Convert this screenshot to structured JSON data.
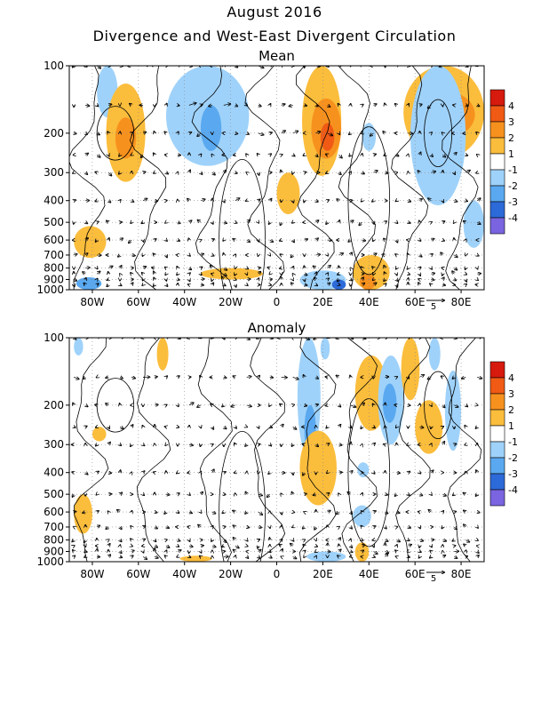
{
  "header": {
    "title": "August 2016",
    "subtitle": "Divergence and West-East Divergent Circulation"
  },
  "chart_data": [
    {
      "type": "heatmap",
      "title": "Mean",
      "x_ticks": [
        "80W",
        "60W",
        "40W",
        "20W",
        "0",
        "20E",
        "40E",
        "60E",
        "80E"
      ],
      "x_tick_values": [
        -80,
        -60,
        -40,
        -20,
        0,
        20,
        40,
        60,
        80
      ],
      "xlim": [
        -90,
        90
      ],
      "y_ticks": [
        "100",
        "200",
        "300",
        "400",
        "500",
        "600",
        "700",
        "800",
        "900",
        "1000"
      ],
      "y_tick_values": [
        100,
        200,
        300,
        400,
        500,
        600,
        700,
        800,
        900,
        1000
      ],
      "ylim": [
        1000,
        100
      ],
      "y_scale": "log",
      "grid": true,
      "vector_ref_label": "5",
      "colorbar": {
        "labels": [
          "4",
          "3",
          "2",
          "1",
          "-1",
          "-2",
          "-3",
          "-4"
        ],
        "colors": [
          "#d61a0d",
          "#f05a14",
          "#f7911e",
          "#fbbd3c",
          "#ffffff",
          "#9fd2fa",
          "#5aa9f0",
          "#2d6ad9",
          "#7a64e0"
        ]
      },
      "regions": [
        {
          "x": [
            -78,
            -69
          ],
          "p": [
            100,
            170
          ],
          "level": -1
        },
        {
          "x": [
            -74,
            -57
          ],
          "p": [
            120,
            330
          ],
          "level": 1
        },
        {
          "x": [
            -70,
            -61
          ],
          "p": [
            170,
            260
          ],
          "level": 2
        },
        {
          "x": [
            -48,
            -12
          ],
          "p": [
            100,
            280
          ],
          "level": -1
        },
        {
          "x": [
            -33,
            -24
          ],
          "p": [
            150,
            240
          ],
          "level": -2
        },
        {
          "x": [
            11,
            28
          ],
          "p": [
            100,
            310
          ],
          "level": 1
        },
        {
          "x": [
            15,
            28
          ],
          "p": [
            140,
            260
          ],
          "level": 2
        },
        {
          "x": [
            19,
            25
          ],
          "p": [
            180,
            240
          ],
          "level": 3
        },
        {
          "x": [
            37,
            43
          ],
          "p": [
            180,
            240
          ],
          "level": -1
        },
        {
          "x": [
            55,
            90
          ],
          "p": [
            100,
            260
          ],
          "level": 1
        },
        {
          "x": [
            60,
            86
          ],
          "p": [
            130,
            210
          ],
          "level": 2
        },
        {
          "x": [
            58,
            82
          ],
          "p": [
            100,
            420
          ],
          "level": -1
        },
        {
          "x": [
            -88,
            -74
          ],
          "p": [
            520,
            720
          ],
          "level": 1
        },
        {
          "x": [
            -33,
            -6
          ],
          "p": [
            800,
            900
          ],
          "level": 1
        },
        {
          "x": [
            10,
            30
          ],
          "p": [
            820,
            1000
          ],
          "level": -1
        },
        {
          "x": [
            24,
            30
          ],
          "p": [
            900,
            1000
          ],
          "level": -3
        },
        {
          "x": [
            33,
            49
          ],
          "p": [
            700,
            1000
          ],
          "level": 1
        },
        {
          "x": [
            36,
            43
          ],
          "p": [
            850,
            1000
          ],
          "level": 2
        },
        {
          "x": [
            -87,
            -76
          ],
          "p": [
            880,
            1000
          ],
          "level": -2
        },
        {
          "x": [
            0,
            10
          ],
          "p": [
            300,
            460
          ],
          "level": 1
        },
        {
          "x": [
            81,
            90
          ],
          "p": [
            400,
            650
          ],
          "level": -1
        }
      ]
    },
    {
      "type": "heatmap",
      "title": "Anomaly",
      "x_ticks": [
        "80W",
        "60W",
        "40W",
        "20W",
        "0",
        "20E",
        "40E",
        "60E",
        "80E"
      ],
      "x_tick_values": [
        -80,
        -60,
        -40,
        -20,
        0,
        20,
        40,
        60,
        80
      ],
      "xlim": [
        -90,
        90
      ],
      "y_ticks": [
        "100",
        "200",
        "300",
        "400",
        "500",
        "600",
        "700",
        "800",
        "900",
        "1000"
      ],
      "y_tick_values": [
        100,
        200,
        300,
        400,
        500,
        600,
        700,
        800,
        900,
        1000
      ],
      "ylim": [
        1000,
        100
      ],
      "y_scale": "log",
      "grid": true,
      "vector_ref_label": "5",
      "colorbar": {
        "labels": [
          "4",
          "3",
          "2",
          "1",
          "-1",
          "-2",
          "-3",
          "-4"
        ],
        "colors": [
          "#d61a0d",
          "#f05a14",
          "#f7911e",
          "#fbbd3c",
          "#ffffff",
          "#9fd2fa",
          "#5aa9f0",
          "#2d6ad9",
          "#7a64e0"
        ]
      },
      "regions": [
        {
          "x": [
            -52,
            -47
          ],
          "p": [
            100,
            140
          ],
          "level": 1
        },
        {
          "x": [
            -80,
            -74
          ],
          "p": [
            250,
            290
          ],
          "level": 1
        },
        {
          "x": [
            -88,
            -80
          ],
          "p": [
            500,
            750
          ],
          "level": 1
        },
        {
          "x": [
            9,
            19
          ],
          "p": [
            100,
            340
          ],
          "level": -1
        },
        {
          "x": [
            12,
            17
          ],
          "p": [
            200,
            330
          ],
          "level": -2
        },
        {
          "x": [
            19,
            23
          ],
          "p": [
            100,
            125
          ],
          "level": -1
        },
        {
          "x": [
            10,
            26
          ],
          "p": [
            260,
            560
          ],
          "level": 1
        },
        {
          "x": [
            34,
            48
          ],
          "p": [
            120,
            260
          ],
          "level": 1
        },
        {
          "x": [
            44,
            55
          ],
          "p": [
            120,
            300
          ],
          "level": -1
        },
        {
          "x": [
            46,
            52
          ],
          "p": [
            160,
            240
          ],
          "level": -2
        },
        {
          "x": [
            60,
            72
          ],
          "p": [
            190,
            330
          ],
          "level": 1
        },
        {
          "x": [
            54,
            62
          ],
          "p": [
            100,
            190
          ],
          "level": 1
        },
        {
          "x": [
            73,
            80
          ],
          "p": [
            140,
            320
          ],
          "level": -1
        },
        {
          "x": [
            66,
            71
          ],
          "p": [
            100,
            140
          ],
          "level": -1
        },
        {
          "x": [
            35,
            40
          ],
          "p": [
            360,
            420
          ],
          "level": -1
        },
        {
          "x": [
            33,
            41
          ],
          "p": [
            560,
            700
          ],
          "level": -1
        },
        {
          "x": [
            13,
            30
          ],
          "p": [
            900,
            1000
          ],
          "level": -1
        },
        {
          "x": [
            34,
            40
          ],
          "p": [
            820,
            1000
          ],
          "level": 1
        },
        {
          "x": [
            -42,
            -28
          ],
          "p": [
            940,
            1000
          ],
          "level": 1
        },
        {
          "x": [
            -88,
            -84
          ],
          "p": [
            100,
            120
          ],
          "level": -1
        }
      ]
    }
  ]
}
